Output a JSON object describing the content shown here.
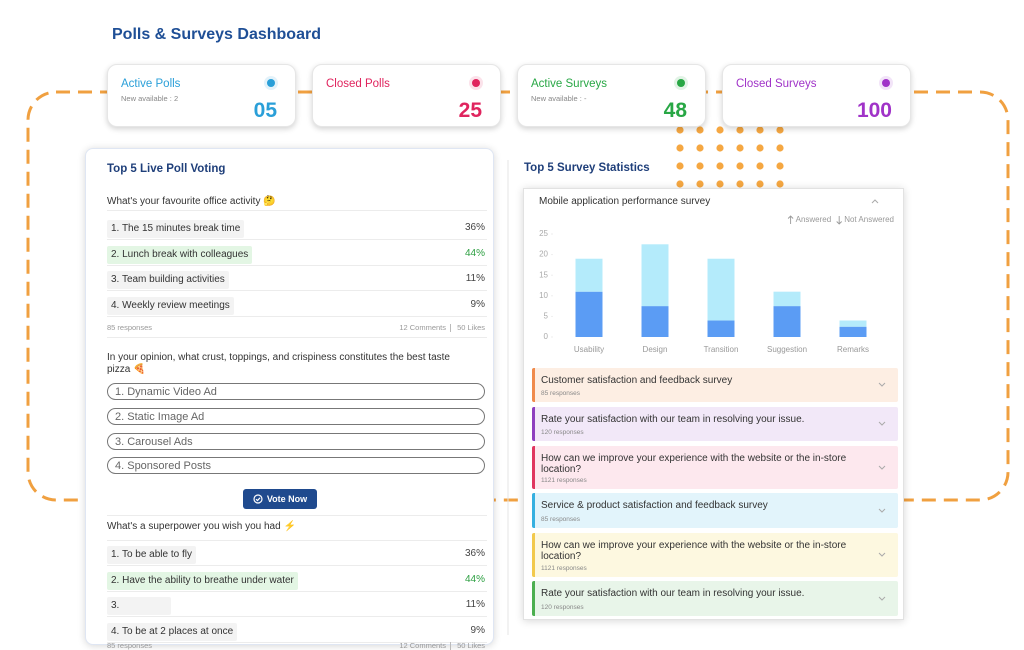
{
  "header": {
    "title": "Polls & Surveys Dashboard"
  },
  "stat_cards": [
    {
      "label": "Active Polls",
      "sub": "New available : 2",
      "value": "05"
    },
    {
      "label": "Closed Polls",
      "value": "25"
    },
    {
      "label": "Active Surveys",
      "sub": "New available :  -",
      "value": "48"
    },
    {
      "label": "Closed Surveys",
      "value": "100"
    }
  ],
  "polls": {
    "title": "Top 5 Live Poll Voting",
    "items": [
      {
        "question": "What's your favourite office activity 🤔",
        "options": [
          {
            "label": "1. The 15 minutes break time",
            "percent": "36%"
          },
          {
            "label": "2. Lunch break with colleagues",
            "percent": "44%"
          },
          {
            "label": "3. Team building activities",
            "percent": "11%"
          },
          {
            "label": "4. Weekly review meetings",
            "percent": "9%"
          }
        ],
        "responses": "85 responses",
        "comments": "12 Comments",
        "likes": "50 Likes"
      },
      {
        "question": "In your opinion, what crust, toppings, and crispiness constitutes the best taste pizza 🍕",
        "choices": [
          "1. Dynamic Video Ad",
          "2. Static Image Ad",
          "3. Carousel Ads",
          "4. Sponsored Posts"
        ],
        "button": "Vote Now"
      },
      {
        "question": "What's a superpower you wish you had ⚡",
        "options": [
          {
            "label": "1. To be able to fly",
            "percent": "36%"
          },
          {
            "label": "2. Have the ability to breathe under water",
            "percent": "44%"
          },
          {
            "label": "3.",
            "percent": "11%"
          },
          {
            "label": "4. To be at 2 places at once",
            "percent": "9%"
          }
        ],
        "responses": "85 responses",
        "comments": "12 Comments",
        "likes": "50 Likes"
      }
    ]
  },
  "surveys": {
    "title": "Top 5 Survey Statistics",
    "list": [
      {
        "title": "Customer satisfaction and feedback survey",
        "responses": "85 responses"
      },
      {
        "title": "Rate your satisfaction with our team in resolving your issue.",
        "responses": "120 responses"
      },
      {
        "title": "How can we improve your experience with the website or the in-store location?",
        "responses": "1121 responses"
      },
      {
        "title": "Service & product satisfaction and feedback survey",
        "responses": "85 responses"
      },
      {
        "title": "How can we improve your experience with the website or the in-store location?",
        "responses": "1121 responses"
      },
      {
        "title": "Rate your satisfaction with our team in resolving your issue.",
        "responses": "120 responses"
      }
    ]
  },
  "chart_data": {
    "type": "stacked_bar",
    "title": "Mobile application performance survey",
    "categories": [
      "Usability",
      "Design",
      "Transition",
      "Suggestion",
      "Remarks"
    ],
    "series": [
      {
        "name": "Answered",
        "color": "#5b9cf4",
        "values": [
          11,
          7.5,
          4,
          7.5,
          2.5
        ]
      },
      {
        "name": "Not Answered",
        "color": "#b4ebfb",
        "values": [
          8,
          15,
          15,
          3.5,
          1.5
        ]
      }
    ],
    "ylim": [
      0,
      25
    ],
    "yticks": [
      0,
      5,
      10,
      15,
      20,
      25
    ]
  }
}
